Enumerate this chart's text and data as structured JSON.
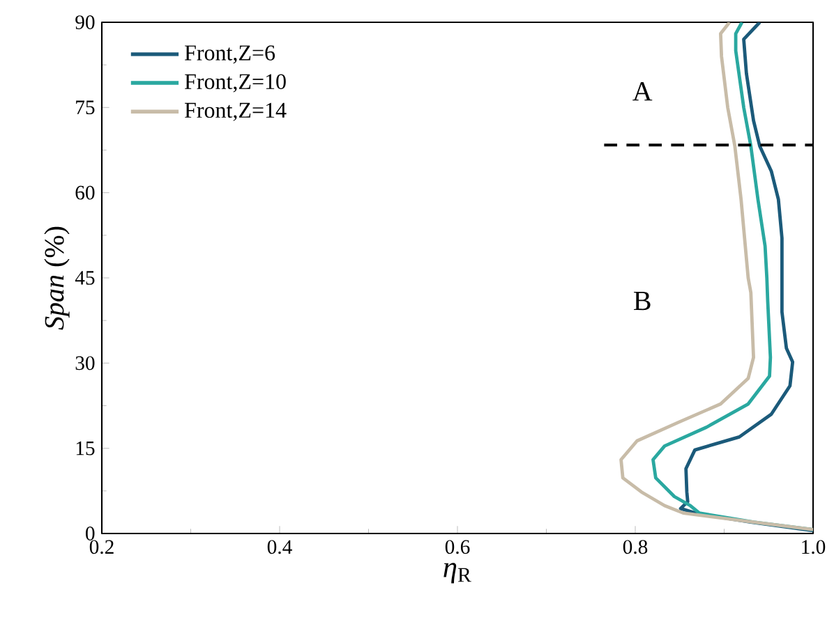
{
  "chart_data": {
    "type": "line",
    "xlabel": "*η*$_{R}$",
    "ylabel": "*Span* (%)",
    "xlim": [
      0.2,
      1.0
    ],
    "ylim": [
      0,
      90
    ],
    "xticks": [
      0.2,
      0.4,
      0.6,
      0.8,
      {
        "value": 1.0,
        "label": "1.0"
      }
    ],
    "yticks": [
      0,
      15,
      30,
      45,
      60,
      75,
      90
    ],
    "legend": "top left",
    "grid": false,
    "marker": "none",
    "line_style": "solid",
    "annotations": [
      "A",
      "B"
    ],
    "series": [
      {
        "name": "Front,Z=6",
        "color": "#1b5a7a",
        "x": [
          0.94,
          0.922,
          0.925,
          0.933,
          0.94,
          0.953,
          0.961,
          0.965,
          0.965,
          0.97,
          0.977,
          0.974,
          0.953,
          0.917,
          0.867,
          0.857,
          0.858,
          0.859,
          0.851,
          0.87,
          0.93,
          1.0
        ],
        "values": [
          90,
          87,
          81,
          72.7,
          68.2,
          63.8,
          58.8,
          52,
          39,
          32.6,
          30.2,
          26,
          21,
          17,
          14.7,
          11.4,
          7.3,
          5.6,
          4.4,
          3.5,
          2,
          0.5
        ]
      },
      {
        "name": "Front,Z=10",
        "color": "#2aa8a0",
        "x": [
          0.92,
          0.913,
          0.913,
          0.922,
          0.93,
          0.938,
          0.946,
          0.948,
          0.949,
          0.952,
          0.951,
          0.927,
          0.88,
          0.833,
          0.82,
          0.823,
          0.844,
          0.862,
          0.872,
          0.933,
          1.0
        ],
        "values": [
          90,
          88,
          85,
          75,
          68.2,
          58.8,
          50.6,
          45,
          40.8,
          31,
          27.7,
          22.8,
          18.7,
          15.4,
          13,
          9.8,
          6.5,
          4.9,
          3.6,
          2,
          0.7
        ]
      },
      {
        "name": "Front,Z=14",
        "color": "#c8bca8",
        "x": [
          0.906,
          0.896,
          0.897,
          0.904,
          0.912,
          0.919,
          0.927,
          0.93,
          0.933,
          0.927,
          0.896,
          0.849,
          0.802,
          0.784,
          0.786,
          0.807,
          0.833,
          0.854,
          0.933,
          1.0
        ],
        "values": [
          90,
          88,
          84,
          75,
          68.2,
          58.8,
          45,
          42.4,
          31,
          27.3,
          22.8,
          19.6,
          16.3,
          13,
          9.8,
          7.3,
          4.9,
          3.6,
          2,
          0.7
        ]
      },
      {
        "type": "line",
        "line_style": "dashed",
        "color": "#000000",
        "x": [
          0.765,
          1.0
        ],
        "values": [
          68.4,
          68.4
        ]
      }
    ]
  }
}
